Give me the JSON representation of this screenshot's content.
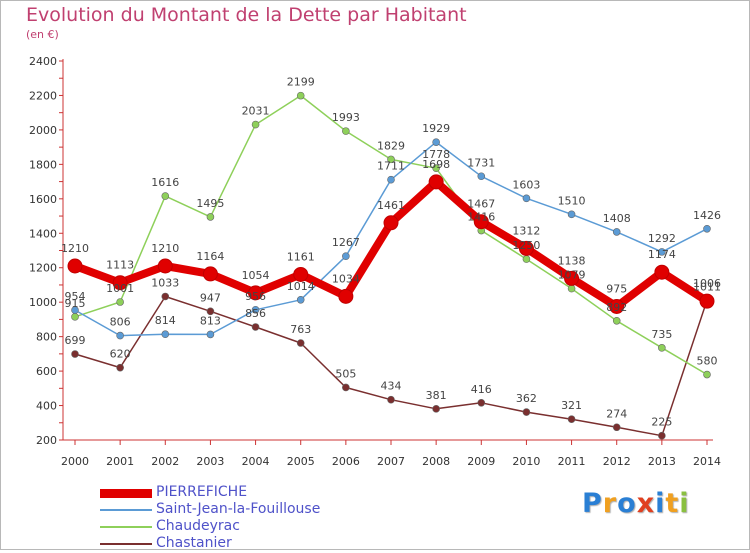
{
  "title": "Evolution du Montant de la Dette par Habitant",
  "subtitle": "(en €)",
  "logo": {
    "letters": [
      "P",
      "r",
      "o",
      "x",
      "i",
      "t",
      "i"
    ],
    "colors": [
      "#2a7fd4",
      "#f0a020",
      "#2a7fd4",
      "#e04020",
      "#2a7fd4",
      "#f0a020",
      "#8ac040"
    ]
  },
  "chart_data": {
    "type": "line",
    "title": "Evolution du Montant de la Dette par Habitant",
    "ylabel": "(en €)",
    "xlabel": "",
    "x": [
      "2000",
      "2001",
      "2002",
      "2003",
      "2004",
      "2005",
      "2006",
      "2007",
      "2008",
      "2009",
      "2010",
      "2011",
      "2012",
      "2013",
      "2014"
    ],
    "ylim": [
      200,
      2400
    ],
    "yticks": [
      "200",
      "400",
      "600",
      "800",
      "1000",
      "1200",
      "1400",
      "1600",
      "1800",
      "2000",
      "2200",
      "2400"
    ],
    "grid": false,
    "legend_position": "bottom-left",
    "series": [
      {
        "name": "PIERREFICHE",
        "color": "#e00000",
        "values": [
          1210,
          1113,
          1210,
          1164,
          1054,
          1161,
          1034,
          1461,
          1698,
          1467,
          1312,
          1138,
          975,
          1174,
          1006
        ]
      },
      {
        "name": "Saint-Jean-la-Fouillouse",
        "color": "#5b9bd5",
        "values": [
          954,
          806,
          814,
          813,
          956,
          1014,
          1267,
          1711,
          1929,
          1731,
          1603,
          1510,
          1408,
          1292,
          1426
        ]
      },
      {
        "name": "Chaudeyrac",
        "color": "#8ed05a",
        "values": [
          915,
          1001,
          1616,
          1495,
          2031,
          2199,
          1993,
          1829,
          1778,
          1416,
          1250,
          1079,
          892,
          735,
          580
        ]
      },
      {
        "name": "Chastanier",
        "color": "#7a2f2f",
        "values": [
          699,
          620,
          1033,
          947,
          856,
          763,
          505,
          434,
          381,
          416,
          362,
          321,
          274,
          225,
          1011
        ]
      }
    ]
  }
}
